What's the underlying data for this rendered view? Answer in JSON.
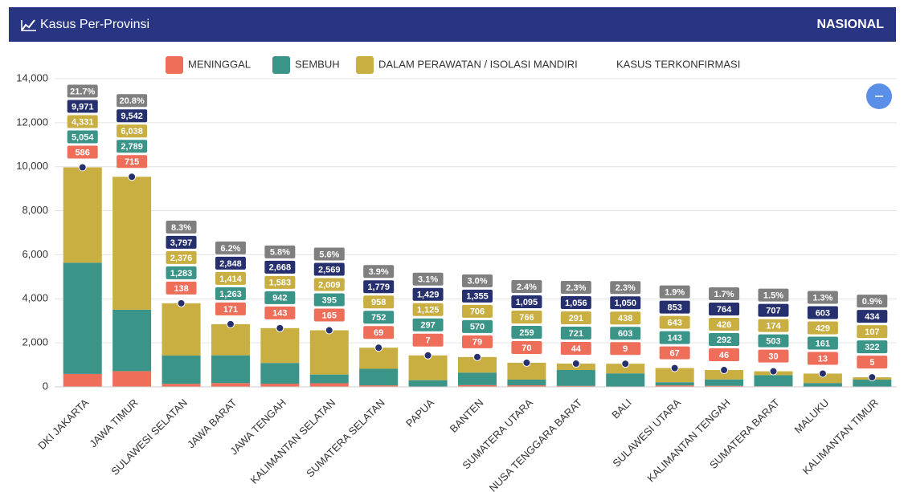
{
  "header": {
    "title": "Kasus Per-Provinsi",
    "scope": "NASIONAL"
  },
  "chart_data": {
    "type": "stacked_bar",
    "categories": [
      "DKI JAKARTA",
      "JAWA TIMUR",
      "SULAWESI SELATAN",
      "JAWA BARAT",
      "JAWA TENGAH",
      "KALIMANTAN SELATAN",
      "SUMATERA SELATAN",
      "PAPUA",
      "BANTEN",
      "SUMATERA UTARA",
      "NUSA TENGGARA BARAT",
      "BALI",
      "SULAWESI UTARA",
      "KALIMANTAN TENGAH",
      "SUMATERA BARAT",
      "MALUKU",
      "KALIMANTAN TIMUR"
    ],
    "series": [
      {
        "name": "MENINGGAL",
        "color": "#ee6e5a",
        "values": [
          586,
          715,
          138,
          171,
          143,
          165,
          69,
          7,
          79,
          70,
          44,
          9,
          67,
          46,
          30,
          13,
          5
        ],
        "value_labels": [
          "586",
          "715",
          "138",
          "171",
          "143",
          "165",
          "69",
          "7",
          "79",
          "70",
          "44",
          "9",
          "67",
          "46",
          "30",
          "13",
          "5"
        ]
      },
      {
        "name": "SEMBUH",
        "color": "#3a9488",
        "values": [
          5054,
          2789,
          1283,
          1263,
          942,
          395,
          752,
          297,
          570,
          259,
          721,
          603,
          143,
          292,
          503,
          161,
          322
        ],
        "value_labels": [
          "5,054",
          "2,789",
          "1,283",
          "1,263",
          "942",
          "395",
          "752",
          "297",
          "570",
          "259",
          "721",
          "603",
          "143",
          "292",
          "503",
          "161",
          "322"
        ]
      },
      {
        "name": "DALAM PERAWATAN / ISOLASI MANDIRI",
        "color": "#c9ae42",
        "values": [
          4331,
          6038,
          2376,
          1414,
          1583,
          2009,
          958,
          1125,
          706,
          766,
          291,
          438,
          643,
          426,
          174,
          429,
          107
        ],
        "value_labels": [
          "4,331",
          "6,038",
          "2,376",
          "1,414",
          "1,583",
          "2,009",
          "958",
          "1,125",
          "706",
          "766",
          "291",
          "438",
          "643",
          "426",
          "174",
          "429",
          "107"
        ]
      },
      {
        "name": "KASUS TERKONFIRMASI",
        "color": "#27306e",
        "kind": "total",
        "values": [
          9971,
          9542,
          3797,
          2848,
          2668,
          2569,
          1779,
          1429,
          1355,
          1095,
          1056,
          1050,
          853,
          764,
          707,
          603,
          434
        ],
        "value_labels": [
          "9,971",
          "9,542",
          "3,797",
          "2,848",
          "2,668",
          "2,569",
          "1,779",
          "1,429",
          "1,355",
          "1,095",
          "1,056",
          "1,050",
          "853",
          "764",
          "707",
          "603",
          "434"
        ]
      }
    ],
    "share": {
      "color": "#7f7f7f",
      "values": [
        21.7,
        20.8,
        8.3,
        6.2,
        5.8,
        5.6,
        3.9,
        3.1,
        3.0,
        2.4,
        2.3,
        2.3,
        1.9,
        1.7,
        1.5,
        1.3,
        0.9
      ],
      "value_labels": [
        "21.7%",
        "20.8%",
        "8.3%",
        "6.2%",
        "5.8%",
        "5.6%",
        "3.9%",
        "3.1%",
        "3.0%",
        "2.4%",
        "2.3%",
        "2.3%",
        "1.9%",
        "1.7%",
        "1.5%",
        "1.3%",
        "0.9%"
      ]
    },
    "ylim": [
      0,
      14000
    ],
    "yticks": [
      {
        "value": 0,
        "label": "0"
      },
      {
        "value": 2000,
        "label": "2,000"
      },
      {
        "value": 4000,
        "label": "4,000"
      },
      {
        "value": 6000,
        "label": "6,000"
      },
      {
        "value": 8000,
        "label": "8,000"
      },
      {
        "value": 10000,
        "label": "10,000"
      },
      {
        "value": 12000,
        "label": "12,000"
      },
      {
        "value": 14000,
        "label": "14,000"
      }
    ],
    "grid": true
  }
}
